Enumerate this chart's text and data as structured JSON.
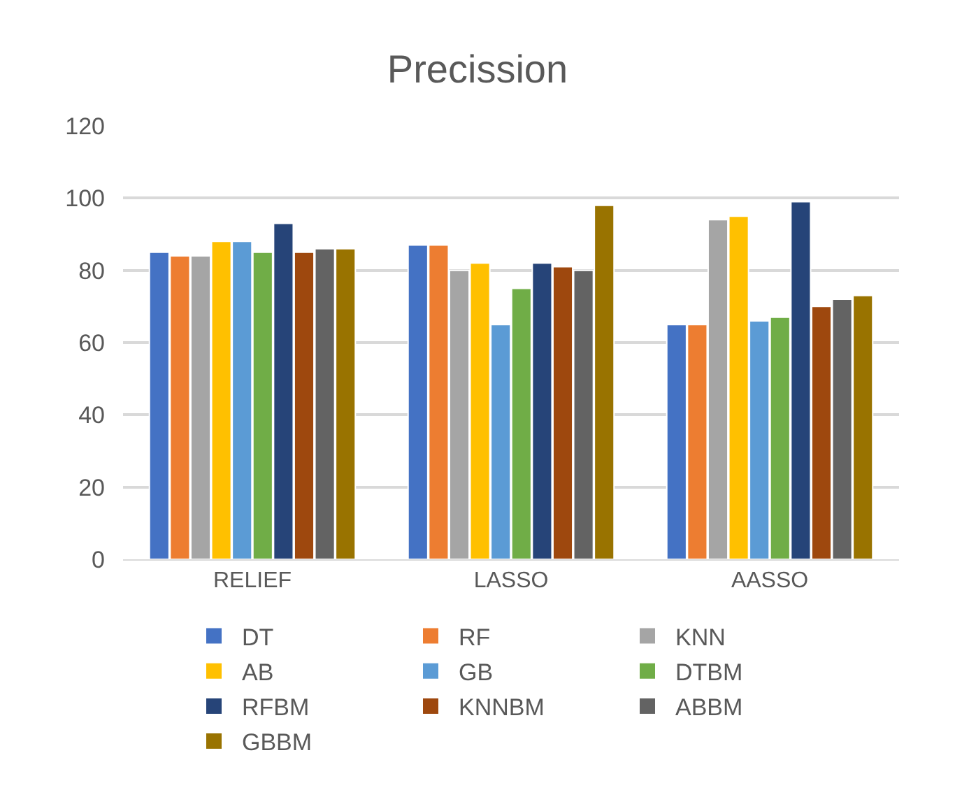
{
  "chart_data": {
    "type": "bar",
    "title": "Precission",
    "categories": [
      "RELIEF",
      "LASSO",
      "AASSO"
    ],
    "series": [
      {
        "name": "DT",
        "color": "#4472c4",
        "values": [
          85,
          87,
          65
        ]
      },
      {
        "name": "RF",
        "color": "#ed7d31",
        "values": [
          84,
          87,
          65
        ]
      },
      {
        "name": "KNN",
        "color": "#a5a5a5",
        "values": [
          84,
          80,
          94
        ]
      },
      {
        "name": "AB",
        "color": "#ffc000",
        "values": [
          88,
          82,
          95
        ]
      },
      {
        "name": "GB",
        "color": "#5b9bd5",
        "values": [
          88,
          65,
          66
        ]
      },
      {
        "name": "DTBM",
        "color": "#70ad47",
        "values": [
          85,
          75,
          67
        ]
      },
      {
        "name": "RFBM",
        "color": "#264478",
        "values": [
          93,
          82,
          99
        ]
      },
      {
        "name": "KNNBM",
        "color": "#9e480e",
        "values": [
          85,
          81,
          70
        ]
      },
      {
        "name": "ABBM",
        "color": "#636363",
        "values": [
          86,
          80,
          72
        ]
      },
      {
        "name": "GBBM",
        "color": "#997300",
        "values": [
          86,
          98,
          73
        ]
      }
    ],
    "ylim": [
      0,
      120
    ],
    "yticks": [
      0,
      20,
      40,
      60,
      80,
      100,
      120
    ],
    "grid": "y",
    "legend": "bottom"
  }
}
